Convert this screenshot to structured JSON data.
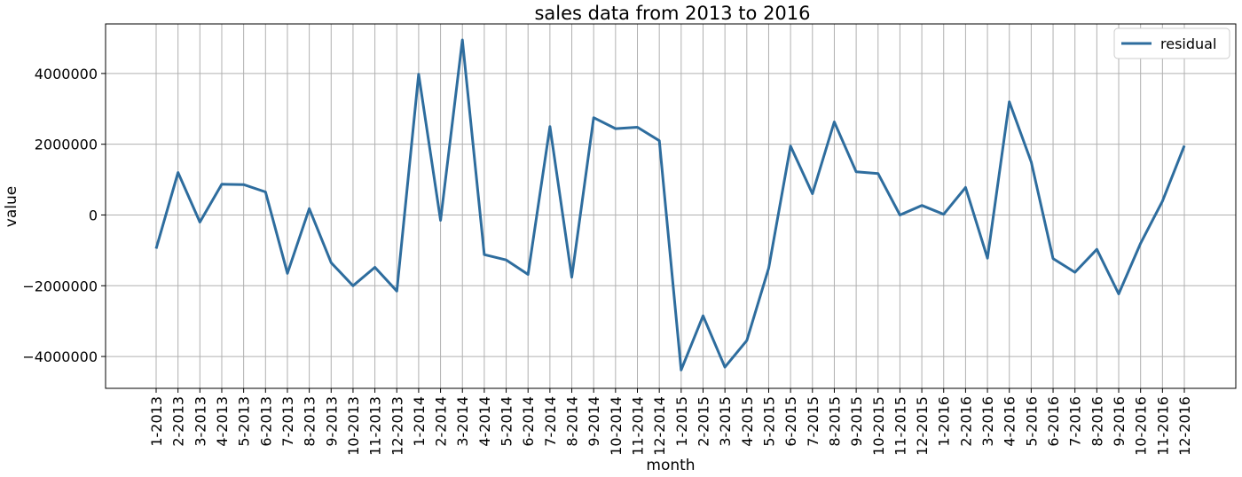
{
  "chart_data": {
    "type": "line",
    "title": "sales data from 2013 to 2016",
    "xlabel": "month",
    "ylabel": "value",
    "ylim": [
      -4900000,
      5400000
    ],
    "yticks": [
      -4000000,
      -2000000,
      0,
      2000000,
      4000000
    ],
    "ytick_labels": [
      "−4000000",
      "−2000000",
      "0",
      "2000000",
      "4000000"
    ],
    "grid": true,
    "legend": "upper-right",
    "categories": [
      "1-2013",
      "2-2013",
      "3-2013",
      "4-2013",
      "5-2013",
      "6-2013",
      "7-2013",
      "8-2013",
      "9-2013",
      "10-2013",
      "11-2013",
      "12-2013",
      "1-2014",
      "2-2014",
      "3-2014",
      "4-2014",
      "5-2014",
      "6-2014",
      "7-2014",
      "8-2014",
      "9-2014",
      "10-2014",
      "11-2014",
      "12-2014",
      "1-2015",
      "2-2015",
      "3-2015",
      "4-2015",
      "5-2015",
      "6-2015",
      "7-2015",
      "8-2015",
      "9-2015",
      "10-2015",
      "11-2015",
      "12-2015",
      "1-2016",
      "2-2016",
      "3-2016",
      "4-2016",
      "5-2016",
      "6-2016",
      "7-2016",
      "8-2016",
      "9-2016",
      "10-2016",
      "11-2016",
      "12-2016"
    ],
    "series": [
      {
        "name": "residual",
        "color": "#2e6d9e",
        "values": [
          -950000,
          1200000,
          -200000,
          870000,
          860000,
          650000,
          -1650000,
          180000,
          -1350000,
          -2000000,
          -1480000,
          -2150000,
          3980000,
          -150000,
          4950000,
          -1120000,
          -1270000,
          -1680000,
          2500000,
          -1760000,
          2750000,
          2440000,
          2480000,
          2100000,
          -4380000,
          -2850000,
          -4300000,
          -3550000,
          -1500000,
          1950000,
          600000,
          2630000,
          1220000,
          1170000,
          0,
          270000,
          20000,
          780000,
          -1220000,
          3200000,
          1500000,
          -1230000,
          -1620000,
          -970000,
          -2230000,
          -800000,
          390000,
          1960000
        ]
      }
    ]
  }
}
